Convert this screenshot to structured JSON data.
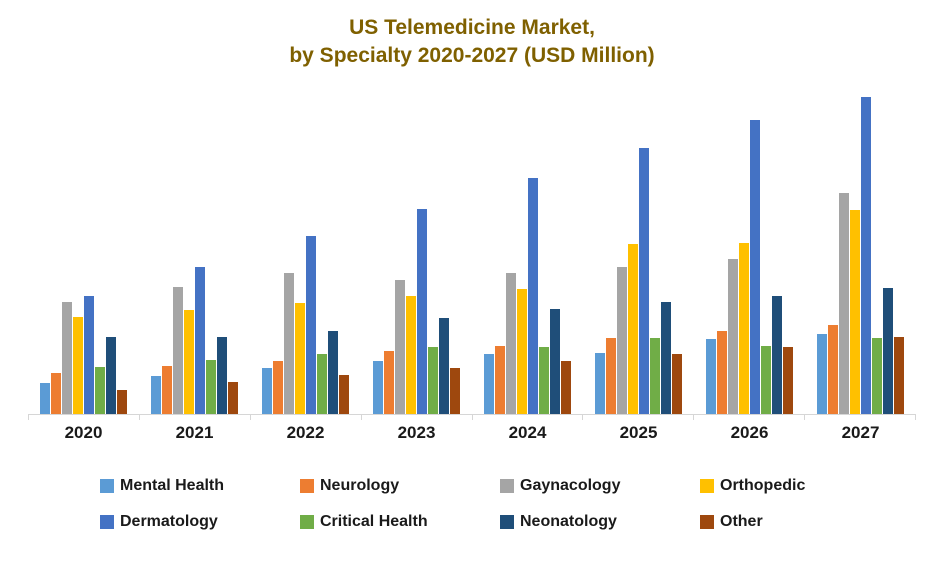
{
  "title": {
    "line1": "US Telemedicine Market,",
    "line2": "by Specialty 2020-2027 (USD Million)"
  },
  "title_color": "#7F6000",
  "chart_data": {
    "type": "bar",
    "title": "US Telemedicine Market, by Specialty 2020-2027 (USD Million)",
    "xlabel": "",
    "ylabel": "USD Million",
    "ylim": [
      0,
      3400
    ],
    "grid": false,
    "y_axis_visible": false,
    "legend_position": "bottom",
    "categories": [
      "2020",
      "2021",
      "2022",
      "2023",
      "2024",
      "2025",
      "2026",
      "2027"
    ],
    "series": [
      {
        "name": "Mental Health",
        "color": "#5B9BD5",
        "values": [
          320,
          390,
          470,
          540,
          620,
          630,
          770,
          820
        ]
      },
      {
        "name": "Neurology",
        "color": "#ED7D31",
        "values": [
          420,
          490,
          540,
          650,
          700,
          780,
          850,
          920
        ]
      },
      {
        "name": "Gaynacology",
        "color": "#A5A5A5",
        "values": [
          1150,
          1310,
          1450,
          1380,
          1450,
          1520,
          1600,
          2280
        ]
      },
      {
        "name": "Orthopedic",
        "color": "#FFC000",
        "values": [
          1000,
          1070,
          1140,
          1220,
          1290,
          1750,
          1760,
          2100
        ]
      },
      {
        "name": "Dermatology",
        "color": "#4472C4",
        "values": [
          1220,
          1520,
          1840,
          2120,
          2440,
          2750,
          3040,
          3270
        ]
      },
      {
        "name": "Critical Health",
        "color": "#70AD47",
        "values": [
          480,
          550,
          620,
          690,
          690,
          780,
          700,
          780
        ]
      },
      {
        "name": "Neonatology",
        "color": "#1F4E79",
        "values": [
          790,
          790,
          850,
          990,
          1080,
          1150,
          1220,
          1300
        ]
      },
      {
        "name": "Other",
        "color": "#9E480E",
        "values": [
          250,
          330,
          400,
          470,
          540,
          620,
          690,
          790
        ]
      }
    ]
  }
}
